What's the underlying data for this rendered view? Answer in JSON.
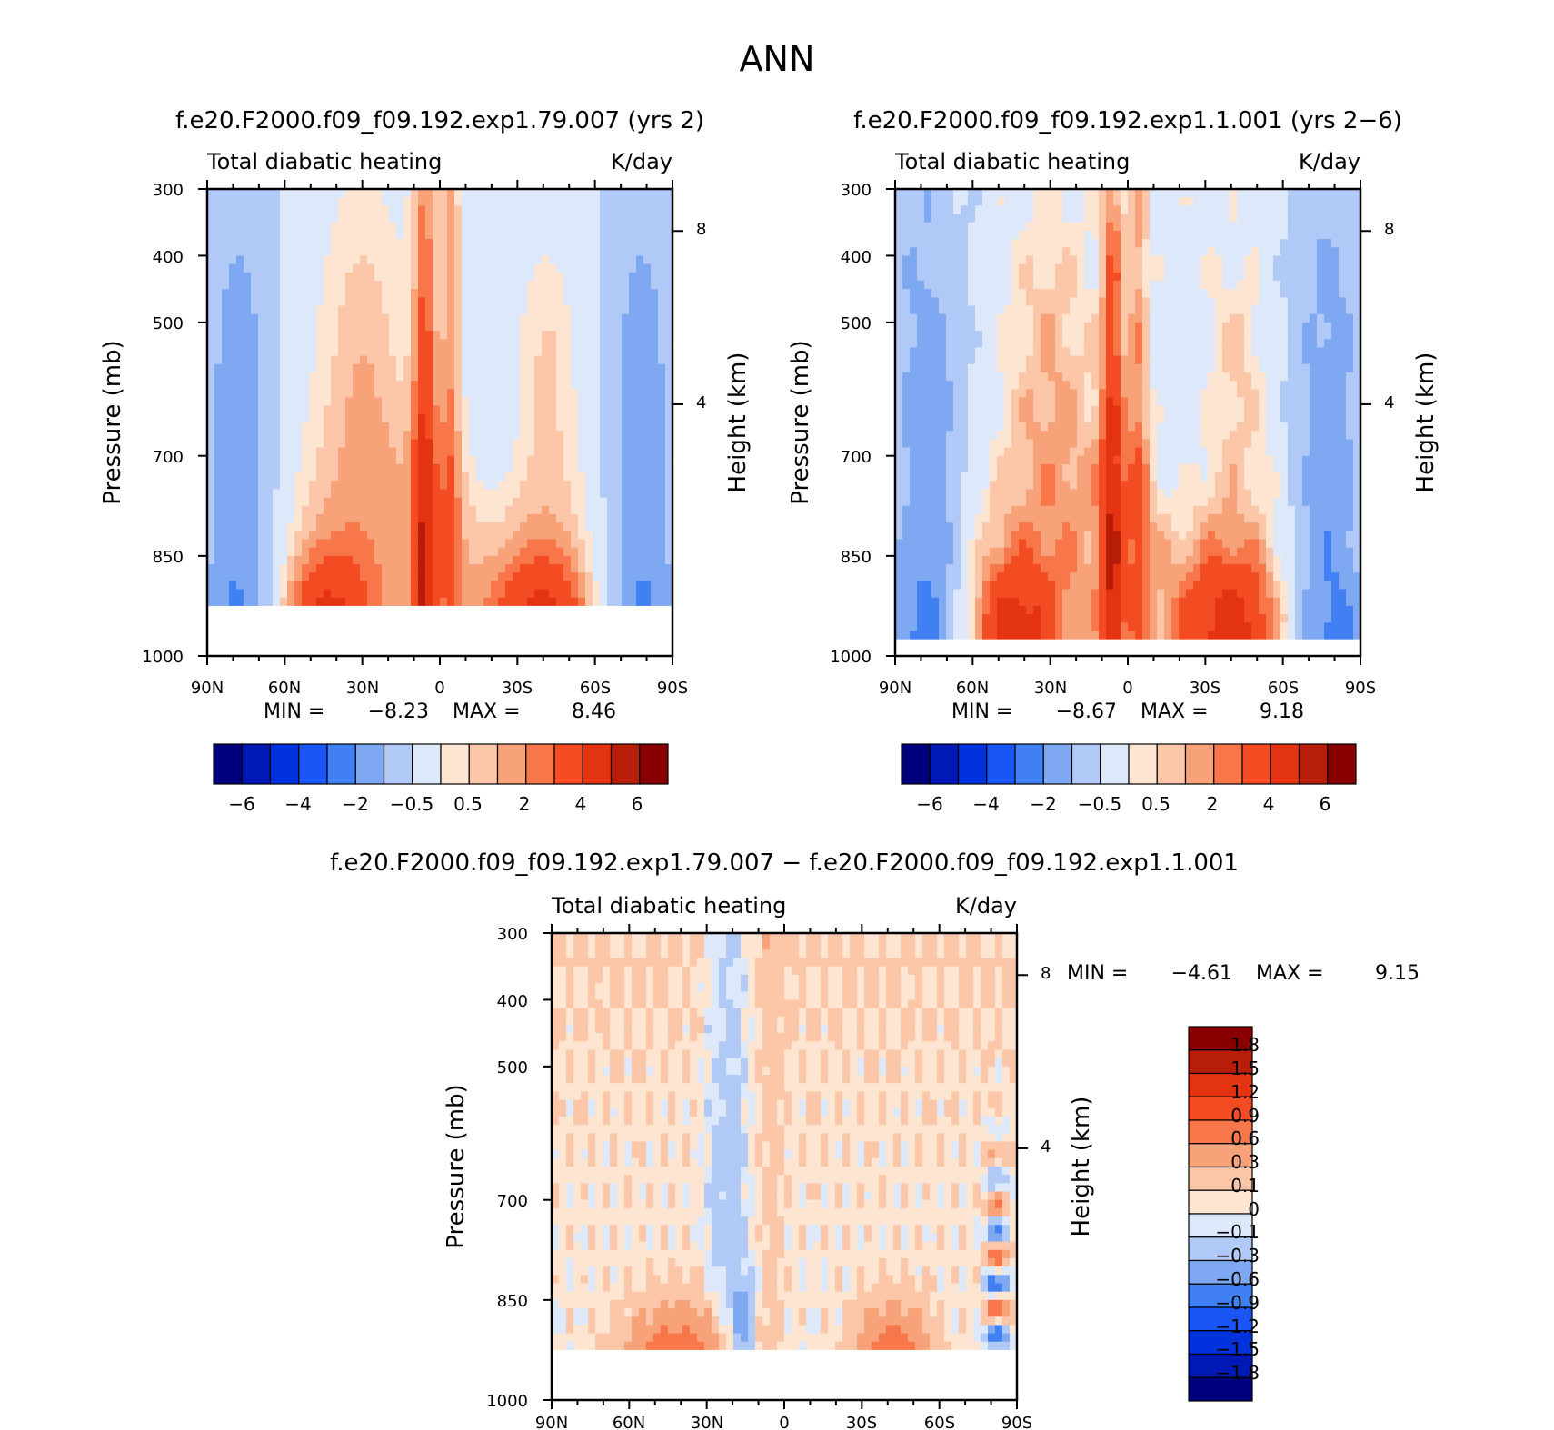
{
  "figure": {
    "title": "ANN"
  },
  "chart_data": [
    {
      "type": "heatmap",
      "id": "case1",
      "title": "f.e20.F2000.f09_f09.192.exp1.79.007 (yrs 2)",
      "left_label": "Total diabatic heating",
      "right_label": "K/day",
      "xlabel": "",
      "ylabel": "Pressure (mb)",
      "ylabel_right": "Height (km)",
      "x_ticks": [
        "90N",
        "60N",
        "30N",
        "0",
        "30S",
        "60S",
        "90S"
      ],
      "y_ticks": [
        "300",
        "400",
        "500",
        "700",
        "850",
        "1000"
      ],
      "y_right_ticks": [
        "8",
        "4"
      ],
      "min_label": "MIN =",
      "min_value": "−8.23",
      "max_label": "MAX =",
      "max_value": "8.46",
      "colorbar_ticks": [
        "−6",
        "−4",
        "−2",
        "−0.5",
        "0.5",
        "2",
        "4",
        "6"
      ],
      "colorbar_levels": [
        -8,
        -7,
        -6,
        -5,
        -4,
        -3,
        -2,
        -1,
        -0.5,
        0,
        0.5,
        1,
        2,
        3,
        4,
        5,
        6,
        7
      ],
      "surface_pressure": 920
    },
    {
      "type": "heatmap",
      "id": "case2",
      "title": "f.e20.F2000.f09_f09.192.exp1.1.001 (yrs 2−6)",
      "left_label": "Total diabatic heating",
      "right_label": "K/day",
      "xlabel": "",
      "ylabel": "Pressure (mb)",
      "ylabel_right": "Height (km)",
      "x_ticks": [
        "90N",
        "60N",
        "30N",
        "0",
        "30S",
        "60S",
        "90S"
      ],
      "y_ticks": [
        "300",
        "400",
        "500",
        "700",
        "850",
        "1000"
      ],
      "y_right_ticks": [
        "8",
        "4"
      ],
      "min_label": "MIN =",
      "min_value": "−8.67",
      "max_label": "MAX =",
      "max_value": "9.18",
      "colorbar_ticks": [
        "−6",
        "−4",
        "−2",
        "−0.5",
        "0.5",
        "2",
        "4",
        "6"
      ],
      "colorbar_levels": [
        -8,
        -7,
        -6,
        -5,
        -4,
        -3,
        -2,
        -1,
        -0.5,
        0,
        0.5,
        1,
        2,
        3,
        4,
        5,
        6,
        7
      ],
      "surface_pressure": 980
    },
    {
      "type": "heatmap",
      "id": "diff",
      "title": "f.e20.F2000.f09_f09.192.exp1.79.007 − f.e20.F2000.f09_f09.192.exp1.1.001",
      "left_label": "Total diabatic heating",
      "right_label": "K/day",
      "xlabel": "",
      "ylabel": "Pressure (mb)",
      "ylabel_right": "Height (km)",
      "x_ticks": [
        "90N",
        "60N",
        "30N",
        "0",
        "30S",
        "60S",
        "90S"
      ],
      "y_ticks": [
        "300",
        "400",
        "500",
        "700",
        "850",
        "1000"
      ],
      "y_right_ticks": [
        "8",
        "4"
      ],
      "min_label": "MIN =",
      "min_value": "−4.61",
      "max_label": "MAX =",
      "max_value": "9.15",
      "colorbar_ticks": [
        "1.8",
        "1.5",
        "1.2",
        "0.9",
        "0.6",
        "0.3",
        "0.1",
        "0",
        "−0.1",
        "−0.3",
        "−0.6",
        "−0.9",
        "−1.2",
        "−1.5",
        "−1.8"
      ],
      "surface_pressure": 920
    }
  ],
  "colors": {
    "blues": [
      "#00007f",
      "#0019b4",
      "#0033dd",
      "#1a55f5",
      "#4080f2",
      "#7fa8f2",
      "#b0c9f7",
      "#dde9fb"
    ],
    "reds": [
      "#fde5d2",
      "#fcc7a8",
      "#f8a27a",
      "#f7774a",
      "#f44c22",
      "#e33310",
      "#b81d0a",
      "#880000"
    ]
  }
}
